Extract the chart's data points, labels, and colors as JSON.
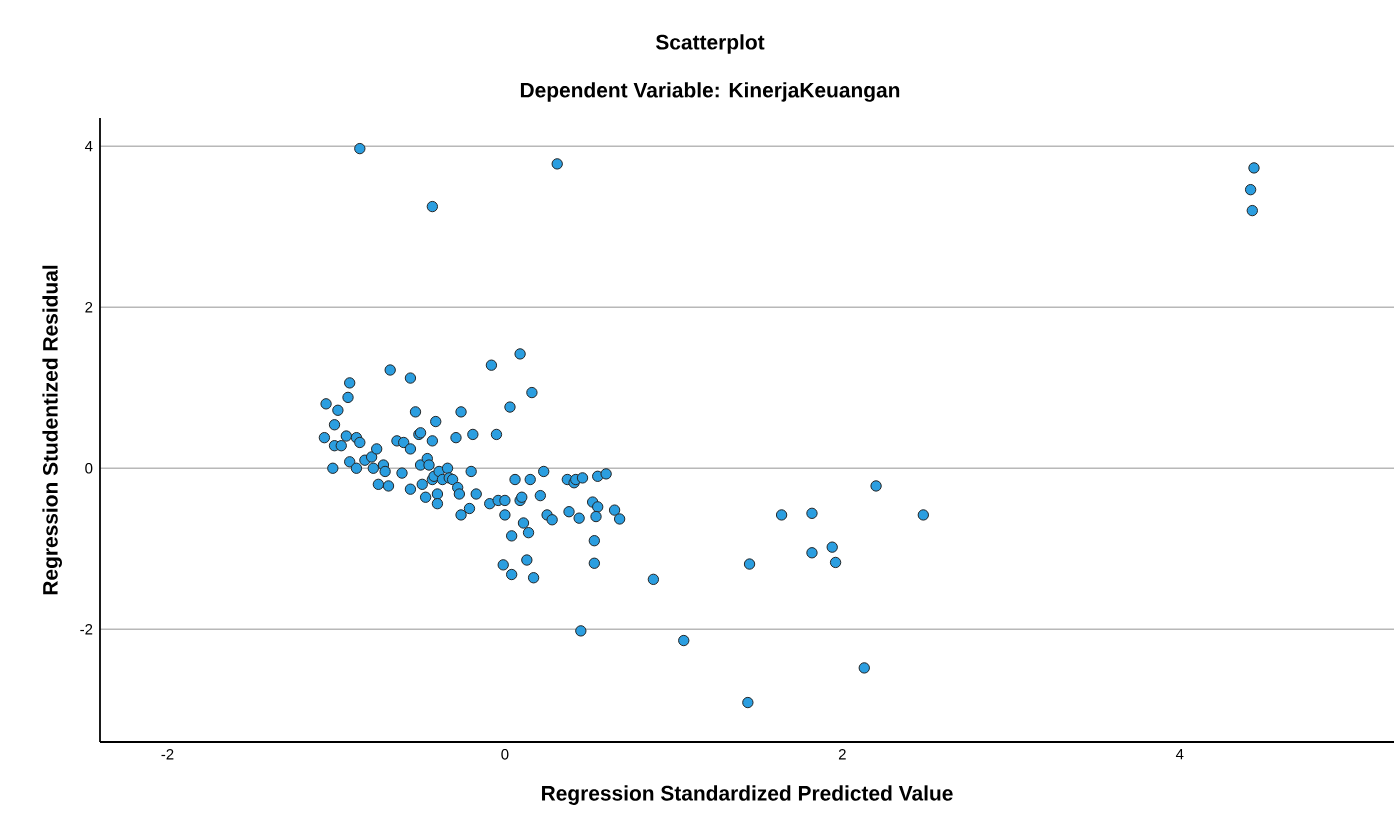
{
  "chart_data": {
    "type": "scatter",
    "title": "Scatterplot",
    "subtitle": "Dependent Variable: KinerjaKeuangan",
    "xlabel": "Regression Standardized Predicted Value",
    "ylabel": "Regression Studentized Residual",
    "xlim": [
      -2.4,
      5.27
    ],
    "ylim": [
      -3.4,
      4.35
    ],
    "xticks": [
      -2,
      0,
      2,
      4
    ],
    "yticks": [
      -2,
      0,
      2,
      4
    ],
    "grid": "y",
    "marker": "circle",
    "series": [
      {
        "color": "#2b9ee0",
        "x": [
          -1.06,
          -0.99,
          -0.92,
          -0.93,
          -1.07,
          -1.01,
          -1.01,
          -0.97,
          -1.02,
          -0.94,
          -0.88,
          -0.86,
          -0.92,
          -0.88,
          -0.83,
          -0.79,
          -0.78,
          -0.76,
          -0.75,
          -0.72,
          -0.71,
          -0.69,
          -0.68,
          -0.64,
          -0.6,
          -0.61,
          -0.56,
          -0.56,
          -0.53,
          -0.56,
          -0.51,
          -0.5,
          -0.5,
          -0.49,
          -0.47,
          -0.46,
          -0.45,
          -0.43,
          -0.43,
          -0.42,
          -0.41,
          -0.4,
          -0.4,
          -0.39,
          -0.37,
          -0.34,
          -0.33,
          -0.31,
          -0.29,
          -0.28,
          -0.26,
          -0.27,
          -0.26,
          -0.21,
          -0.2,
          -0.19,
          -0.17,
          -0.08,
          -0.05,
          -0.09,
          -0.04,
          0.0,
          0.0,
          0.03,
          0.04,
          0.06,
          0.09,
          0.09,
          0.1,
          0.11,
          0.14,
          0.15,
          0.16,
          0.17,
          0.13,
          0.04,
          -0.01,
          0.21,
          0.23,
          0.25,
          0.28,
          0.37,
          0.38,
          0.41,
          0.42,
          0.44,
          0.46,
          0.52,
          0.53,
          0.53,
          0.55,
          0.55,
          0.54,
          0.6,
          0.65,
          0.68,
          0.45,
          0.88,
          1.06,
          1.44,
          1.45,
          1.64,
          1.82,
          2.2,
          2.48,
          1.82,
          1.94,
          1.96,
          2.13,
          4.44,
          4.42,
          4.43,
          -0.86,
          0.31,
          -0.43
        ],
        "values": [
          0.8,
          0.72,
          1.06,
          0.88,
          0.38,
          0.54,
          0.28,
          0.28,
          0.0,
          0.4,
          0.38,
          0.32,
          0.08,
          0.0,
          0.1,
          0.14,
          0.0,
          0.24,
          -0.2,
          0.04,
          -0.04,
          -0.22,
          1.22,
          0.34,
          0.32,
          -0.06,
          1.12,
          0.24,
          0.7,
          -0.26,
          0.42,
          0.44,
          0.04,
          -0.2,
          -0.36,
          0.12,
          0.04,
          -0.14,
          0.34,
          -0.1,
          0.58,
          -0.32,
          -0.44,
          -0.04,
          -0.14,
          0.0,
          -0.12,
          -0.14,
          0.38,
          -0.24,
          0.7,
          -0.32,
          -0.58,
          -0.5,
          -0.04,
          0.42,
          -0.32,
          1.28,
          0.42,
          -0.44,
          -0.4,
          -0.4,
          -0.58,
          0.76,
          -0.84,
          -0.14,
          1.42,
          -0.4,
          -0.36,
          -0.68,
          -0.8,
          -0.14,
          0.94,
          -1.36,
          -1.14,
          -1.32,
          -1.2,
          -0.34,
          -0.04,
          -0.58,
          -0.64,
          -0.14,
          -0.54,
          -0.18,
          -0.14,
          -0.62,
          -0.12,
          -0.42,
          -0.9,
          -1.18,
          -0.1,
          -0.48,
          -0.6,
          -0.07,
          -0.52,
          -0.63,
          -2.02,
          -1.38,
          -2.14,
          -2.91,
          -1.19,
          -0.58,
          -0.56,
          -0.22,
          -0.58,
          -1.05,
          -0.98,
          -1.17,
          -2.48,
          3.73,
          3.46,
          3.2,
          3.97,
          3.78,
          3.25
        ]
      }
    ]
  }
}
